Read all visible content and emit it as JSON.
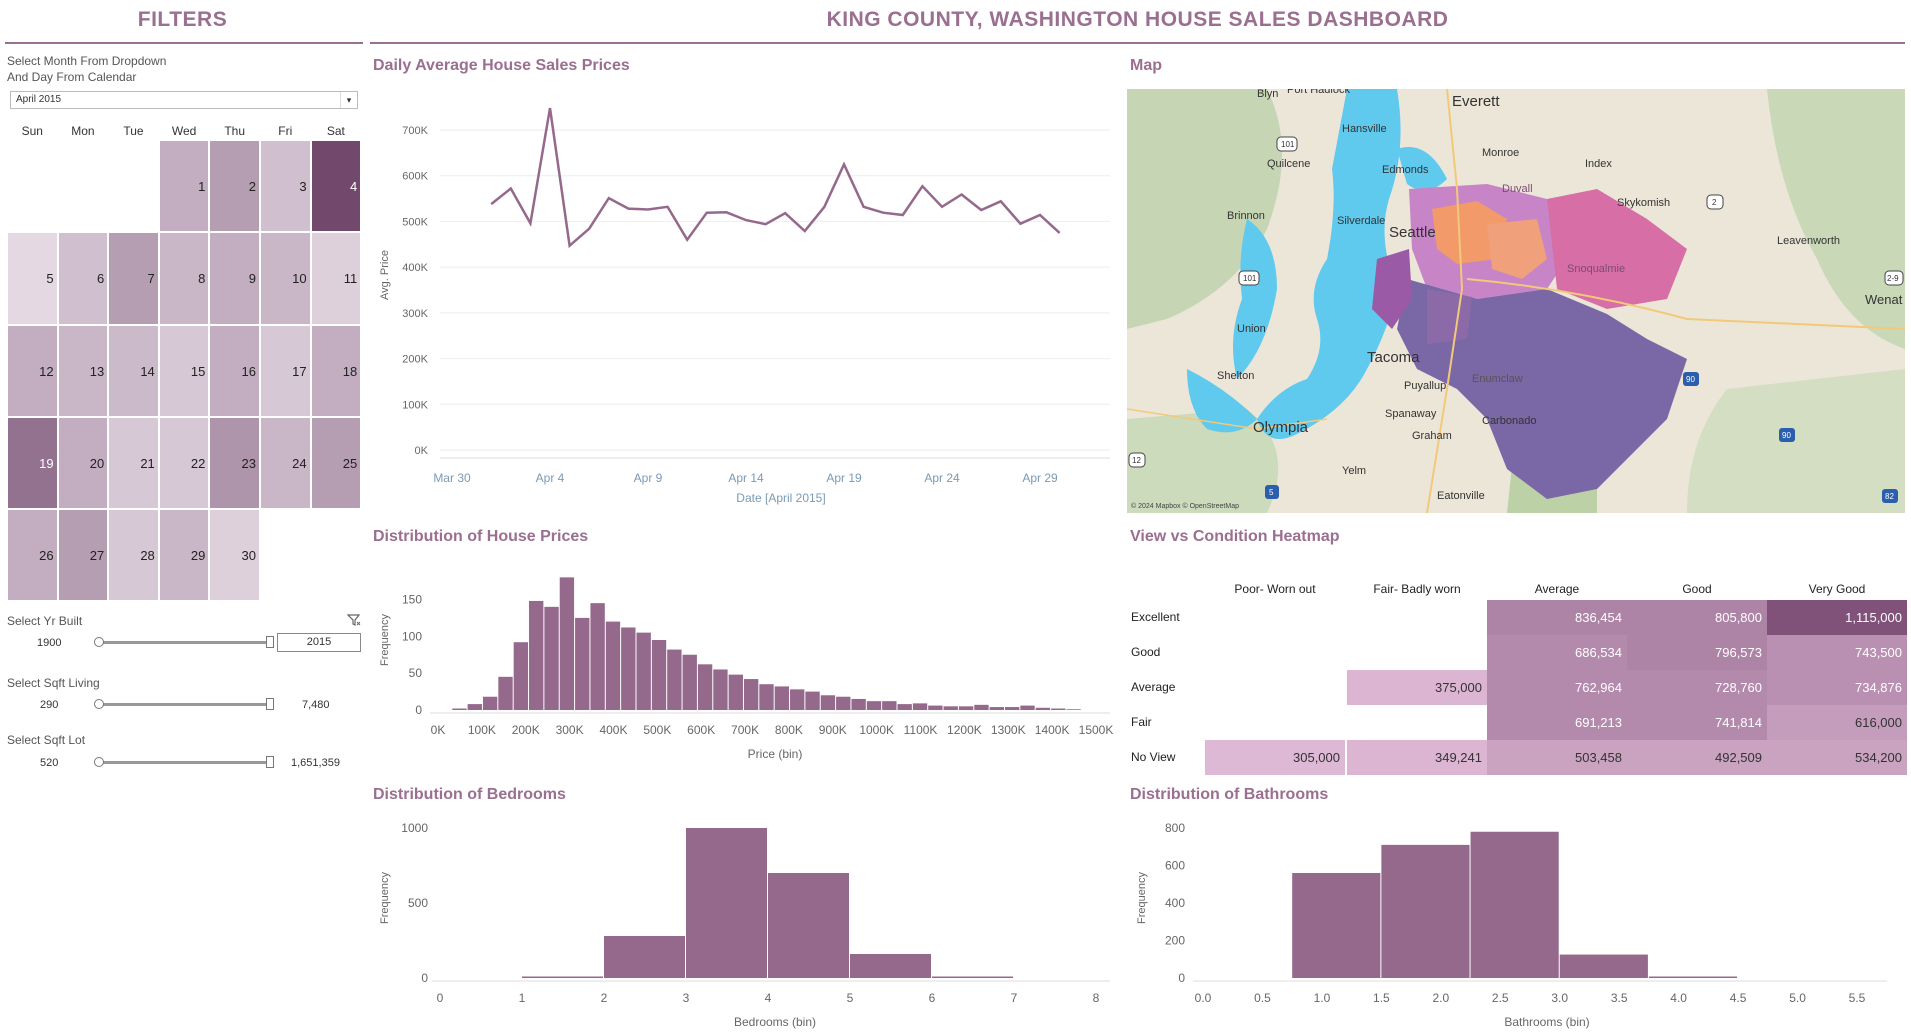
{
  "header": {
    "filters_title": "FILTERS",
    "dashboard_title": "KING COUNTY, WASHINGTON HOUSE SALES DASHBOARD"
  },
  "filters": {
    "month_prompt_line1": "Select Month From Dropdown",
    "month_prompt_line2": "And Day From Calendar",
    "month_value": "April 2015",
    "calendar": {
      "weekdays": [
        "Sun",
        "Mon",
        "Tue",
        "Wed",
        "Thu",
        "Fri",
        "Sat"
      ],
      "first_weekday_index": 3,
      "days": 30,
      "shading": [
        0.35,
        0.45,
        0.25,
        0.95,
        0.1,
        0.25,
        0.45,
        0.3,
        0.35,
        0.3,
        0.15,
        0.35,
        0.3,
        0.28,
        0.2,
        0.35,
        0.2,
        0.35,
        0.7,
        0.35,
        0.2,
        0.2,
        0.5,
        0.3,
        0.45,
        0.35,
        0.45,
        0.2,
        0.3,
        0.15
      ],
      "color_low": "#f1eaf0",
      "color_high": "#6b3f66"
    },
    "yr_built": {
      "label": "Select Yr Built",
      "min": "1900",
      "max": "2015"
    },
    "sqft_living": {
      "label": "Select Sqft Living",
      "min": "290",
      "max": "7,480"
    },
    "sqft_lot": {
      "label": "Select Sqft Lot",
      "min": "520",
      "max": "1,651,359"
    }
  },
  "line_chart": {
    "title": "Daily Average House Sales Prices",
    "chart_data": {
      "type": "line",
      "xlabel": "Date [April 2015]",
      "ylabel": "Avg. Price",
      "x_ticks": [
        "Mar 30",
        "Apr 4",
        "Apr 9",
        "Apr 14",
        "Apr 19",
        "Apr 24",
        "Apr 29"
      ],
      "y_ticks": [
        "0K",
        "100K",
        "200K",
        "300K",
        "400K",
        "500K",
        "600K",
        "700K"
      ],
      "ylim": [
        0,
        700000
      ],
      "x": [
        "Apr 1",
        "Apr 2",
        "Apr 3",
        "Apr 4",
        "Apr 5",
        "Apr 6",
        "Apr 7",
        "Apr 8",
        "Apr 9",
        "Apr 10",
        "Apr 11",
        "Apr 12",
        "Apr 13",
        "Apr 14",
        "Apr 15",
        "Apr 16",
        "Apr 17",
        "Apr 18",
        "Apr 19",
        "Apr 20",
        "Apr 21",
        "Apr 22",
        "Apr 23",
        "Apr 24",
        "Apr 25",
        "Apr 26",
        "Apr 27",
        "Apr 28",
        "Apr 29",
        "Apr 30"
      ],
      "values": [
        538000,
        572000,
        496000,
        748000,
        447000,
        484000,
        551000,
        528000,
        526000,
        532000,
        460000,
        519000,
        520000,
        503000,
        494000,
        518000,
        479000,
        532000,
        625000,
        532000,
        519000,
        514000,
        577000,
        532000,
        559000,
        525000,
        544000,
        495000,
        514000,
        475000
      ],
      "color": "#94698c"
    }
  },
  "price_hist": {
    "title": "Distribution of House Prices",
    "chart_data": {
      "type": "bar",
      "xlabel": "Price (bin)",
      "ylabel": "Frequency",
      "x_ticks": [
        "0K",
        "100K",
        "200K",
        "300K",
        "400K",
        "500K",
        "600K",
        "700K",
        "800K",
        "900K",
        "1000K",
        "1100K",
        "1200K",
        "1300K",
        "1400K",
        "1500K"
      ],
      "y_ticks": [
        "0",
        "50",
        "100",
        "150"
      ],
      "ylim": [
        0,
        190
      ],
      "bin_width_k": 35,
      "bin_start_k": 50,
      "values": [
        2,
        8,
        18,
        45,
        92,
        148,
        140,
        180,
        125,
        145,
        120,
        112,
        105,
        95,
        82,
        75,
        62,
        55,
        48,
        42,
        35,
        32,
        28,
        25,
        20,
        18,
        15,
        12,
        12,
        8,
        9,
        6,
        5,
        5,
        7,
        4,
        4,
        6,
        3,
        2,
        1
      ],
      "color": "#94698c"
    }
  },
  "map": {
    "title": "Map",
    "attribution": "© 2024 Mapbox © OpenStreetMap",
    "places": [
      "Blyn",
      "Port Hadlock",
      "Everett",
      "Hansville",
      "Quilcene",
      "Edmonds",
      "Monroe",
      "Index",
      "Skykomish",
      "Leavenworth",
      "Brinnon",
      "Silverdale",
      "Seattle",
      "Snoqualmie",
      "Union",
      "Tacoma",
      "Puyallup",
      "Enumclaw",
      "Shelton",
      "Olympia",
      "Spanaway",
      "Carbonado",
      "Graham",
      "Yelm",
      "Eatonville",
      "Wenatchee",
      "Duvall"
    ],
    "shields": [
      "101",
      "101",
      "2",
      "90",
      "90",
      "12",
      "5",
      "82",
      "2-9"
    ]
  },
  "heatmap": {
    "title": "View vs Condition Heatmap",
    "columns": [
      "Poor- Worn out",
      "Fair- Badly worn",
      "Average",
      "Good",
      "Very Good"
    ],
    "rows": [
      {
        "label": "Excellent",
        "cells": [
          "",
          "",
          "836,454",
          "805,800",
          "1,115,000"
        ],
        "levels": [
          null,
          null,
          0.55,
          0.55,
          0.95
        ]
      },
      {
        "label": "Good",
        "cells": [
          "",
          "",
          "686,534",
          "796,573",
          "743,500"
        ],
        "levels": [
          null,
          null,
          0.5,
          0.55,
          0.45
        ]
      },
      {
        "label": "Average",
        "cells": [
          "",
          "375,000",
          "762,964",
          "728,760",
          "734,876"
        ],
        "levels": [
          null,
          0.15,
          0.5,
          0.5,
          0.45
        ]
      },
      {
        "label": "Fair",
        "cells": [
          "",
          "",
          "691,213",
          "741,814",
          "616,000"
        ],
        "levels": [
          null,
          null,
          0.5,
          0.5,
          0.35
        ]
      },
      {
        "label": "No View",
        "cells": [
          "305,000",
          "349,241",
          "503,458",
          "492,509",
          "534,200"
        ],
        "levels": [
          0.12,
          0.15,
          0.3,
          0.3,
          0.3
        ]
      }
    ],
    "color_low": "#ecc8e2",
    "color_high": "#7a4c74"
  },
  "bedrooms_hist": {
    "title": "Distribution of Bedrooms",
    "chart_data": {
      "type": "bar",
      "xlabel": "Bedrooms (bin)",
      "ylabel": "Frequency",
      "x_ticks": [
        "0",
        "1",
        "2",
        "3",
        "4",
        "5",
        "6",
        "7",
        "8"
      ],
      "y_ticks": [
        "0",
        "500",
        "1000"
      ],
      "ylim": [
        0,
        1000
      ],
      "bins": [
        1,
        2,
        3,
        4,
        5,
        6
      ],
      "values": [
        10,
        280,
        1000,
        700,
        160,
        10
      ],
      "color": "#94698c"
    }
  },
  "bathrooms_hist": {
    "title": "Distribution of Bathrooms",
    "chart_data": {
      "type": "bar",
      "xlabel": "Bathrooms (bin)",
      "ylabel": "Frequency",
      "x_ticks": [
        "0.0",
        "0.5",
        "1.0",
        "1.5",
        "2.0",
        "2.5",
        "3.0",
        "3.5",
        "4.0",
        "4.5",
        "5.0",
        "5.5"
      ],
      "y_ticks": [
        "0",
        "200",
        "400",
        "600",
        "800"
      ],
      "ylim": [
        0,
        800
      ],
      "bins": [
        0.75,
        1.5,
        2.25,
        3.0,
        3.75,
        4.5
      ],
      "values": [
        560,
        710,
        780,
        125,
        8,
        0
      ],
      "color": "#94698c"
    }
  }
}
